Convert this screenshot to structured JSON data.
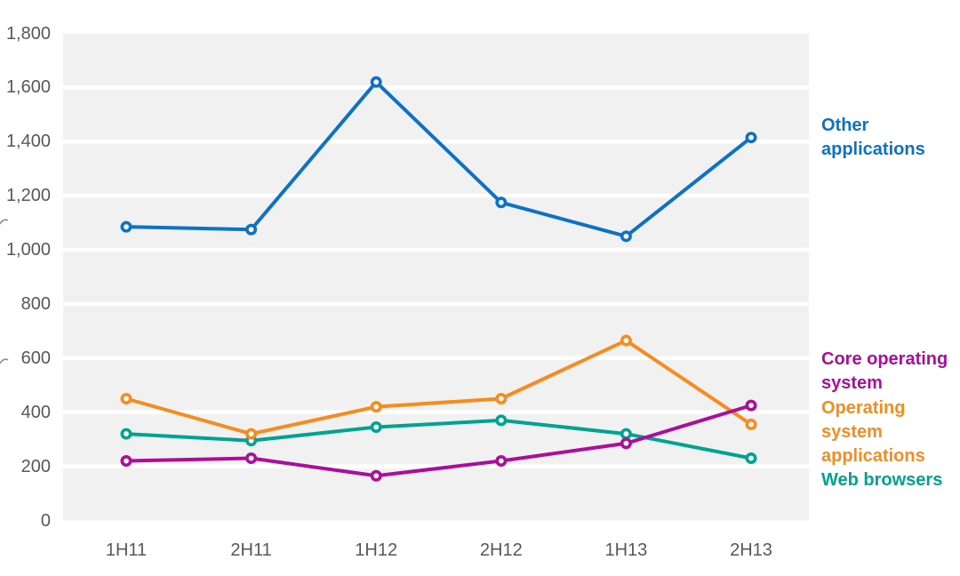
{
  "chart_data": {
    "type": "line",
    "title": "",
    "xlabel": "",
    "ylabel": "",
    "categories": [
      "1H11",
      "2H11",
      "1H12",
      "2H12",
      "1H13",
      "2H13"
    ],
    "series": [
      {
        "name": "Other applications",
        "color": "#0d72c6",
        "values": [
          1085,
          1075,
          1620,
          1175,
          1050,
          1415
        ]
      },
      {
        "name": "Web browsers",
        "color": "#00a390",
        "values": [
          320,
          295,
          345,
          370,
          320,
          230
        ]
      },
      {
        "name": "Operating system applications",
        "color": "#f78b1e",
        "values": [
          450,
          320,
          420,
          450,
          665,
          355
        ]
      },
      {
        "name": "Core operating system",
        "color": "#ad0d9c",
        "values": [
          220,
          230,
          165,
          220,
          285,
          425
        ]
      }
    ],
    "ylim": [
      0,
      1800
    ],
    "ytick_step": 200,
    "ytick_labels": [
      "0",
      "200",
      "400",
      "600",
      "800",
      "1,000",
      "1,200",
      "1,400",
      "1,600",
      "1,800"
    ],
    "grid": "horizontal white gridlines on light-gray plot background",
    "plot_background_color": "#f1f1f2",
    "gridline_color": "#ffffff",
    "axis_text_color": "#57585a",
    "legend_position": "right",
    "marker_style": "open circle (white fill, colored ring)"
  },
  "legend": {
    "entries": [
      {
        "series": "Other applications",
        "lines": [
          "Other",
          "applications"
        ],
        "color": "#0d72c6"
      },
      {
        "series": "Core operating system",
        "lines": [
          "Core operating",
          "system"
        ],
        "color": "#ad0d9c"
      },
      {
        "series": "Operating system applications",
        "lines": [
          "Operating",
          "system",
          "applications"
        ],
        "color": "#f78b1e"
      },
      {
        "series": "Web browsers",
        "lines": [
          "Web browsers"
        ],
        "color": "#00a390"
      }
    ]
  }
}
